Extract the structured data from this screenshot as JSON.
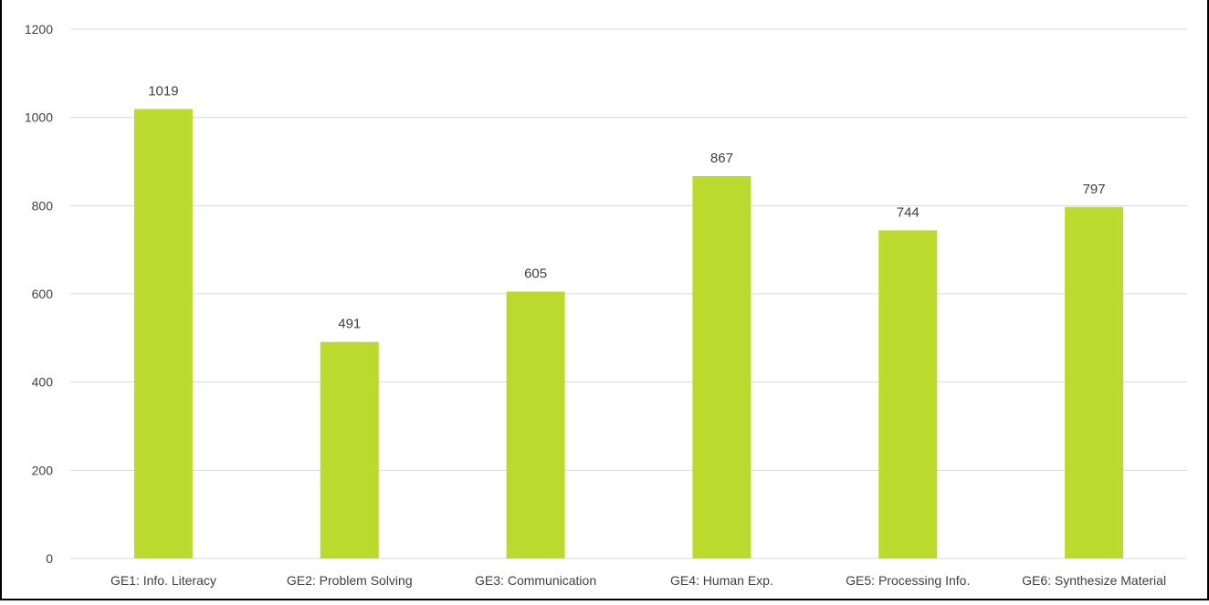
{
  "chart_data": {
    "type": "bar",
    "title": "",
    "xlabel": "",
    "ylabel": "",
    "categories": [
      "GE1: Info. Literacy",
      "GE2: Problem Solving",
      "GE3: Communication",
      "GE4: Human Exp.",
      "GE5: Processing Info.",
      "GE6: Synthesize Material"
    ],
    "values": [
      1019,
      491,
      605,
      867,
      744,
      797
    ],
    "data_labels": [
      "1019",
      "491",
      "605",
      "867",
      "744",
      "797"
    ],
    "ylim": [
      0,
      1200
    ],
    "yticks": [
      "0",
      "200",
      "400",
      "600",
      "800",
      "1000",
      "1200"
    ],
    "grid": true,
    "legend": "none",
    "colors": {
      "bar": "#BCD92E",
      "grid": "#D9D9D9",
      "axis_text": "#404040"
    }
  }
}
